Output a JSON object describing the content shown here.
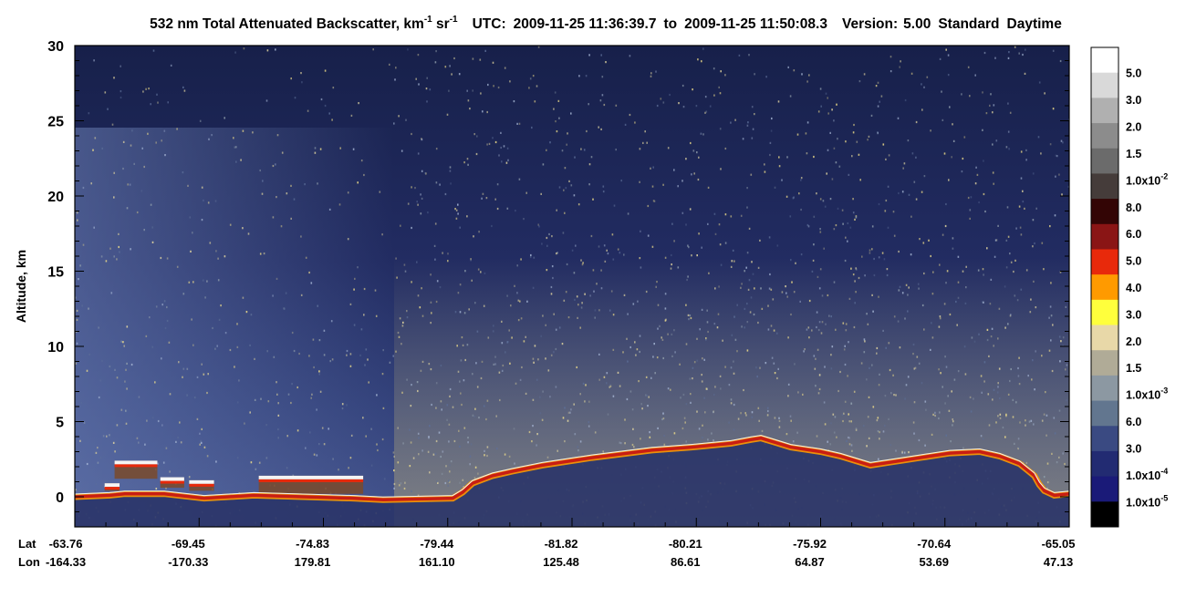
{
  "chart_data": {
    "type": "heatmap",
    "title": {
      "prefix": "532 nm Total Attenuated Backscatter, km",
      "exp1": "-1",
      "mid": " sr",
      "exp2": "-1",
      "utc_label": "UTC:",
      "start": "2009-11-25 11:36:39.7",
      "to": "to",
      "end": "2009-11-25 11:50:08.3",
      "version_label": "Version:",
      "version": "5.00",
      "standard": "Standard",
      "daytime": "Daytime"
    },
    "ylabel": "Altitude, km",
    "ylim": [
      -2,
      30
    ],
    "yticks": [
      "0",
      "5",
      "10",
      "15",
      "20",
      "25",
      "30"
    ],
    "x_row_labels": {
      "lat": "Lat",
      "lon": "Lon"
    },
    "x_ticks": [
      {
        "lat": "-63.76",
        "lon": "-164.33"
      },
      {
        "lat": "-69.45",
        "lon": "-170.33"
      },
      {
        "lat": "-74.83",
        "lon": "179.81"
      },
      {
        "lat": "-79.44",
        "lon": "161.10"
      },
      {
        "lat": "-81.82",
        "lon": "125.48"
      },
      {
        "lat": "-80.21",
        "lon": "86.61"
      },
      {
        "lat": "-75.92",
        "lon": "64.87"
      },
      {
        "lat": "-70.64",
        "lon": "53.69"
      },
      {
        "lat": "-65.05",
        "lon": "47.13"
      }
    ],
    "colorbar": {
      "colors": [
        "#ffffff",
        "#d9d9d9",
        "#b0b0b0",
        "#8c8c8c",
        "#6b6b6b",
        "#453c3a",
        "#330505",
        "#8a1515",
        "#e8290b",
        "#ff9a00",
        "#ffff3c",
        "#e8d8a8",
        "#b0ab97",
        "#8c98a2",
        "#62768f",
        "#3a4a82",
        "#222b72",
        "#1a1a78",
        "#000000"
      ],
      "labels": [
        {
          "text": "5.0",
          "exp": ""
        },
        {
          "text": "3.0",
          "exp": ""
        },
        {
          "text": "2.0",
          "exp": ""
        },
        {
          "text": "1.5",
          "exp": ""
        },
        {
          "text": "1.0x10",
          "exp": "-2"
        },
        {
          "text": "8.0",
          "exp": ""
        },
        {
          "text": "6.0",
          "exp": ""
        },
        {
          "text": "5.0",
          "exp": ""
        },
        {
          "text": "4.0",
          "exp": ""
        },
        {
          "text": "3.0",
          "exp": ""
        },
        {
          "text": "2.0",
          "exp": ""
        },
        {
          "text": "1.5",
          "exp": ""
        },
        {
          "text": "1.0x10",
          "exp": "-3"
        },
        {
          "text": "6.0",
          "exp": ""
        },
        {
          "text": "3.0",
          "exp": ""
        },
        {
          "text": "1.0x10",
          "exp": "-4"
        },
        {
          "text": "1.0x10",
          "exp": "-5"
        }
      ]
    },
    "surface_altitude_km": [
      [
        0,
        0
      ],
      [
        3.5,
        0.1
      ],
      [
        5,
        0.2
      ],
      [
        9,
        0.2
      ],
      [
        13,
        -0.1
      ],
      [
        18,
        0.1
      ],
      [
        28,
        -0.1
      ],
      [
        31,
        -0.2
      ],
      [
        38,
        -0.1
      ],
      [
        39,
        0.3
      ],
      [
        40,
        0.9
      ],
      [
        42,
        1.4
      ],
      [
        44,
        1.7
      ],
      [
        47,
        2.1
      ],
      [
        52,
        2.6
      ],
      [
        58,
        3.1
      ],
      [
        62,
        3.3
      ],
      [
        66,
        3.55
      ],
      [
        68,
        3.8
      ],
      [
        69,
        3.9
      ],
      [
        70,
        3.7
      ],
      [
        72,
        3.3
      ],
      [
        75,
        3.0
      ],
      [
        77,
        2.7
      ],
      [
        78.5,
        2.4
      ],
      [
        80,
        2.1
      ],
      [
        82,
        2.3
      ],
      [
        85,
        2.6
      ],
      [
        88,
        2.9
      ],
      [
        91,
        3.0
      ],
      [
        93,
        2.7
      ],
      [
        95,
        2.2
      ],
      [
        96.5,
        1.4
      ],
      [
        97,
        0.8
      ],
      [
        97.5,
        0.4
      ],
      [
        98.5,
        0.1
      ],
      [
        100,
        0.2
      ]
    ],
    "cloud_layers_km": [
      {
        "x0": 3,
        "x1": 4.5,
        "base": 0.4,
        "top": 0.9
      },
      {
        "x0": 4,
        "x1": 8.3,
        "base": 1.2,
        "top": 2.4
      },
      {
        "x0": 8.6,
        "x1": 11,
        "base": 0.6,
        "top": 1.3
      },
      {
        "x0": 11.5,
        "x1": 14,
        "base": 0.4,
        "top": 1.1
      },
      {
        "x0": 18.5,
        "x1": 29,
        "base": 0.2,
        "top": 1.4
      }
    ]
  }
}
